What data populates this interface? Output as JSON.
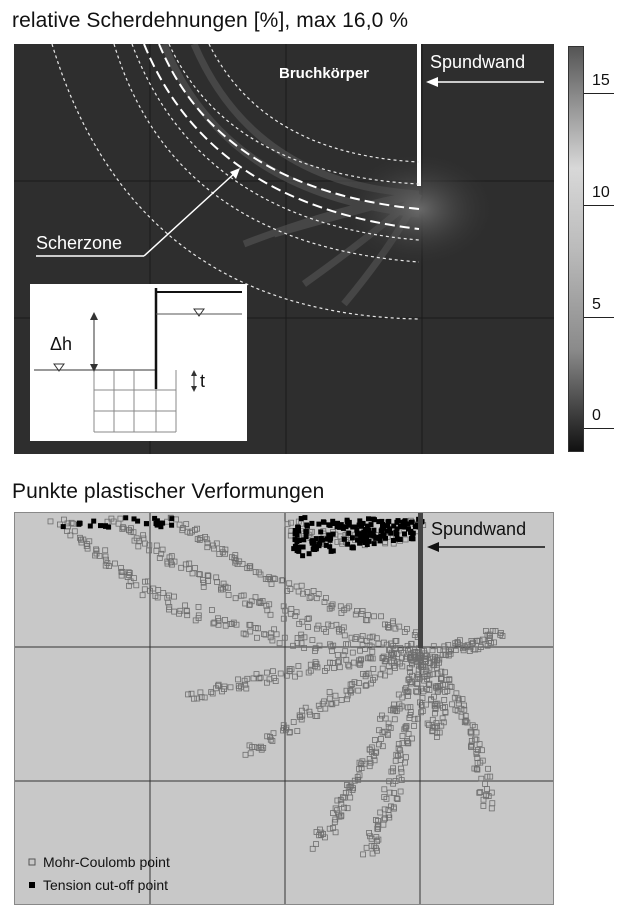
{
  "top_title": "relative Scherdehnungen [%], max 16,0 %",
  "bottom_title": "Punkte plastischer Verformungen",
  "top_panel": {
    "label_bruchkoerper": "Bruchkörper",
    "label_spundwand": "Spundwand",
    "label_scherzone": "Scherzone",
    "inset": {
      "label_dh": "Δh",
      "label_t": "t"
    }
  },
  "colorbar": {
    "ticks": [
      "15",
      "10",
      "5",
      "0"
    ]
  },
  "bottom_panel": {
    "label_spundwand": "Spundwand",
    "legend": {
      "mohr_coulomb": "Mohr-Coulomb point",
      "tension_cutoff": "Tension cut-off point"
    }
  },
  "colors": {
    "dark_bg": "#2b2b2b",
    "light_bg": "#c8c8c8",
    "wall": "#ffffff",
    "points": "#7a7a7a"
  }
}
